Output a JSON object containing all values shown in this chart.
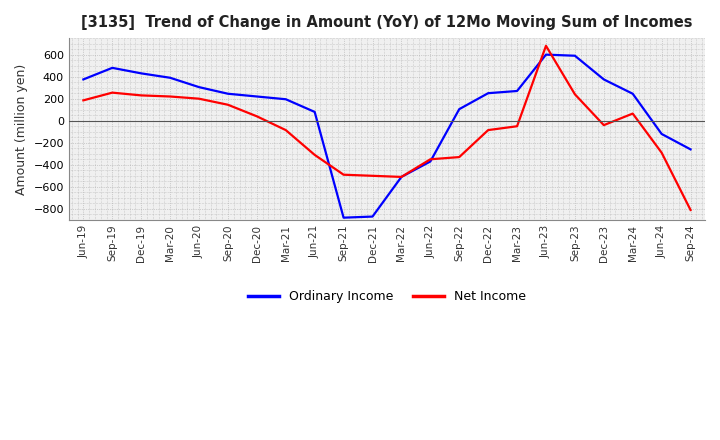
{
  "title": "[3135]  Trend of Change in Amount (YoY) of 12Mo Moving Sum of Incomes",
  "ylabel": "Amount (million yen)",
  "background_color": "#ffffff",
  "plot_bg_color": "#f0f0f0",
  "grid_color": "#aaaaaa",
  "x_labels": [
    "Jun-19",
    "Sep-19",
    "Dec-19",
    "Mar-20",
    "Jun-20",
    "Sep-20",
    "Dec-20",
    "Mar-21",
    "Jun-21",
    "Sep-21",
    "Dec-21",
    "Mar-22",
    "Jun-22",
    "Sep-22",
    "Dec-22",
    "Mar-23",
    "Jun-23",
    "Sep-23",
    "Dec-23",
    "Mar-24",
    "Jun-24",
    "Sep-24"
  ],
  "ordinary_income": [
    375,
    480,
    430,
    390,
    305,
    245,
    220,
    195,
    80,
    -880,
    -870,
    -510,
    -370,
    105,
    250,
    270,
    600,
    590,
    375,
    245,
    -120,
    -260
  ],
  "net_income": [
    185,
    255,
    230,
    220,
    200,
    145,
    40,
    -85,
    -310,
    -490,
    -500,
    -510,
    -350,
    -330,
    -85,
    -50,
    680,
    240,
    -40,
    65,
    -290,
    -810
  ],
  "ordinary_color": "#0000ff",
  "net_color": "#ff0000",
  "line_width": 1.6,
  "ylim": [
    -900,
    750
  ],
  "yticks": [
    -800,
    -600,
    -400,
    -200,
    0,
    200,
    400,
    600
  ]
}
